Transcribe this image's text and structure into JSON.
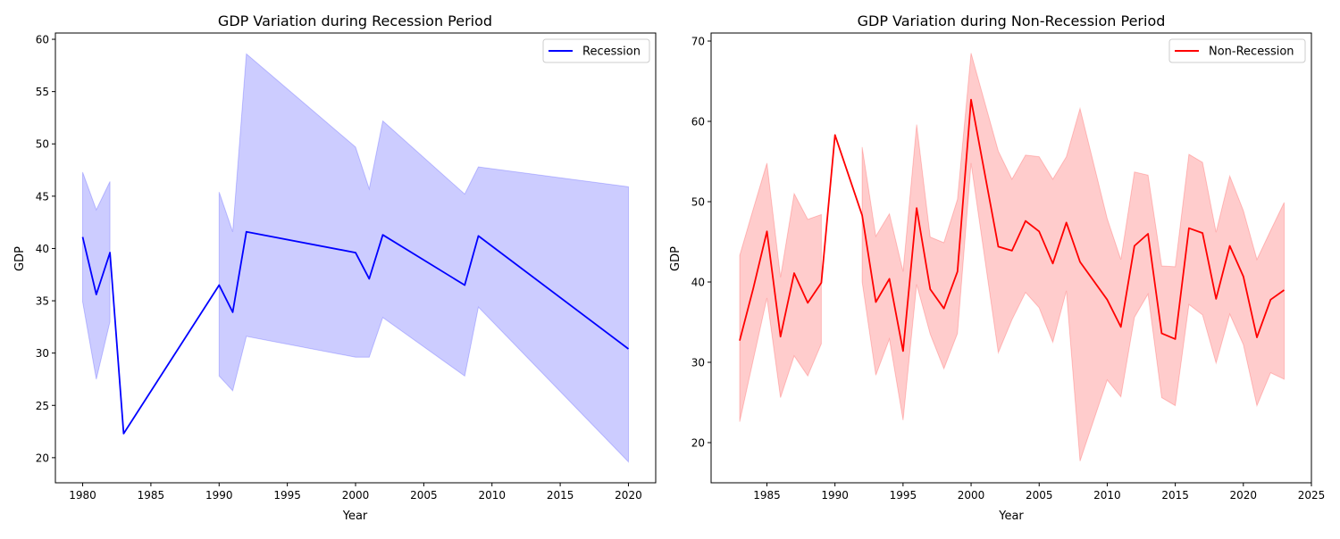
{
  "chart_data": [
    {
      "type": "line",
      "title": "GDP Variation during Recession Period",
      "xlabel": "Year",
      "ylabel": "GDP",
      "xlim": [
        1978,
        2022
      ],
      "ylim": [
        17.6,
        60.6
      ],
      "xticks": [
        1980,
        1985,
        1990,
        1995,
        2000,
        2005,
        2010,
        2015,
        2020
      ],
      "yticks": [
        20,
        25,
        30,
        35,
        40,
        45,
        50,
        55,
        60
      ],
      "legend": "top-right",
      "grid": false,
      "series": [
        {
          "name": "Recession",
          "color": "#0000ff",
          "x": [
            1980,
            1981,
            1982,
            1983,
            1990,
            1991,
            1992,
            2000,
            2001,
            2002,
            2008,
            2009,
            2020
          ],
          "y": [
            41.1,
            35.6,
            39.6,
            22.3,
            36.5,
            33.9,
            41.6,
            39.6,
            37.1,
            41.3,
            36.5,
            41.2,
            30.4
          ]
        }
      ],
      "bands": [
        {
          "color": "#0000ff",
          "segments": [
            {
              "x": [
                1980,
                1981,
                1982
              ],
              "lower": [
                34.9,
                27.5,
                33.0
              ],
              "upper": [
                47.3,
                43.7,
                46.4
              ]
            },
            {
              "x": [
                1990,
                1991,
                1992,
                2000,
                2001,
                2002,
                2008,
                2009,
                2020
              ],
              "lower": [
                27.8,
                26.4,
                31.6,
                29.6,
                29.6,
                33.4,
                27.8,
                34.4,
                19.6
              ],
              "upper": [
                45.4,
                41.6,
                58.6,
                49.7,
                45.7,
                52.2,
                45.2,
                47.8,
                45.9
              ]
            }
          ]
        }
      ]
    },
    {
      "type": "line",
      "title": "GDP Variation during Non-Recession Period",
      "xlabel": "Year",
      "ylabel": "GDP",
      "xlim": [
        1980.9,
        2025
      ],
      "ylim": [
        15.0,
        71.0
      ],
      "xticks": [
        1985,
        1990,
        1995,
        2000,
        2005,
        2010,
        2015,
        2020,
        2025
      ],
      "yticks": [
        20,
        30,
        40,
        50,
        60,
        70
      ],
      "legend": "top-right",
      "grid": false,
      "series": [
        {
          "name": "Non-Recession",
          "color": "#ff0000",
          "x": [
            1983,
            1984,
            1985,
            1986,
            1987,
            1988,
            1989,
            1990,
            1992,
            1993,
            1994,
            1995,
            1996,
            1997,
            1998,
            1999,
            2000,
            2002,
            2003,
            2004,
            2005,
            2006,
            2007,
            2008,
            2010,
            2011,
            2012,
            2013,
            2014,
            2015,
            2016,
            2017,
            2018,
            2019,
            2020,
            2021,
            2022,
            2023
          ],
          "y": [
            32.7,
            39.2,
            46.3,
            33.2,
            41.1,
            37.4,
            39.9,
            58.3,
            48.3,
            37.5,
            40.4,
            31.4,
            49.2,
            39.1,
            36.7,
            41.3,
            62.7,
            44.4,
            43.9,
            47.6,
            46.3,
            42.3,
            47.4,
            42.5,
            37.8,
            34.4,
            44.5,
            46.0,
            33.6,
            32.9,
            46.7,
            46.1,
            37.9,
            44.5,
            40.7,
            33.1,
            37.8,
            39.0
          ]
        }
      ],
      "bands": [
        {
          "color": "#ff0000",
          "segments": [
            {
              "x": [
                1983,
                1984,
                1985,
                1986,
                1987,
                1988,
                1989
              ],
              "lower": [
                22.6,
                30.3,
                38.0,
                25.6,
                30.8,
                28.3,
                32.3
              ],
              "upper": [
                43.3,
                49.1,
                54.8,
                40.6,
                51.0,
                47.8,
                48.4
              ]
            },
            {
              "x": [
                1992,
                1993,
                1994,
                1995,
                1996,
                1997,
                1998,
                1999,
                2000,
                2002,
                2003,
                2004,
                2005,
                2006,
                2007,
                2008,
                2010,
                2011,
                2012,
                2013,
                2014,
                2015,
                2016,
                2017,
                2018,
                2019,
                2020,
                2021,
                2022,
                2023
              ],
              "lower": [
                40.0,
                28.4,
                32.9,
                22.8,
                39.7,
                33.5,
                29.2,
                33.6,
                54.8,
                31.2,
                35.3,
                38.7,
                36.8,
                32.5,
                38.9,
                17.7,
                27.8,
                25.7,
                35.6,
                38.5,
                25.6,
                24.6,
                37.2,
                35.9,
                29.9,
                36.0,
                32.2,
                24.6,
                28.7,
                27.9
              ],
              "upper": [
                56.8,
                45.7,
                48.5,
                41.3,
                59.6,
                45.6,
                44.9,
                50.3,
                68.5,
                56.3,
                52.8,
                55.8,
                55.6,
                52.8,
                55.6,
                61.6,
                47.9,
                42.8,
                53.7,
                53.3,
                42.0,
                41.9,
                55.9,
                54.9,
                46.2,
                53.2,
                48.9,
                42.8,
                46.4,
                49.9
              ]
            }
          ]
        }
      ]
    }
  ]
}
